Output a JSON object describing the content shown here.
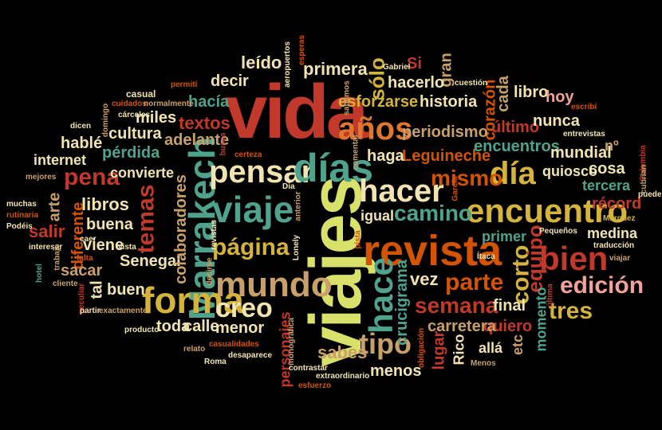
{
  "palette": {
    "red": "#c0392b",
    "rust": "#d35400",
    "yellow": "#d8e16a",
    "teal": "#4fa38c",
    "cream": "#f2e4b0",
    "pink": "#f2a29a",
    "tan": "#c9a06a",
    "orange": "#e0772e",
    "gold": "#d4b43a",
    "olive": "#a8b23a"
  },
  "words": [
    {
      "id": "vida",
      "text": "vida"
    },
    {
      "id": "viajes",
      "text": "viajes"
    },
    {
      "id": "revista",
      "text": "revista"
    },
    {
      "id": "viaje",
      "text": "viaje"
    },
    {
      "id": "marrakech",
      "text": "Marrakech"
    },
    {
      "id": "pensar",
      "text": "pensar"
    },
    {
      "id": "dias",
      "text": "días"
    },
    {
      "id": "encuentro",
      "text": "encuentro"
    },
    {
      "id": "hacer",
      "text": "hacer"
    },
    {
      "id": "mundo",
      "text": "mundo"
    },
    {
      "id": "forma",
      "text": "forma"
    },
    {
      "id": "bien",
      "text": "bien"
    },
    {
      "id": "hace",
      "text": "hace"
    },
    {
      "id": "anos",
      "text": "años"
    },
    {
      "id": "dia",
      "text": "día"
    },
    {
      "id": "pagina",
      "text": "página"
    },
    {
      "id": "tipo",
      "text": "tipo"
    },
    {
      "id": "mismo",
      "text": "mismo"
    },
    {
      "id": "camino",
      "text": "camino"
    },
    {
      "id": "parte",
      "text": "parte"
    },
    {
      "id": "semana",
      "text": "semana"
    },
    {
      "id": "edicion",
      "text": "edición"
    },
    {
      "id": "tres",
      "text": "tres"
    },
    {
      "id": "creo",
      "text": "creo"
    },
    {
      "id": "temas",
      "text": "temas"
    },
    {
      "id": "pena",
      "text": "pena"
    },
    {
      "id": "corto",
      "text": "corto"
    },
    {
      "id": "equipo",
      "text": "equipo"
    },
    {
      "id": "solo",
      "text": "sólo"
    },
    {
      "id": "textos",
      "text": "textos"
    },
    {
      "id": "hacia",
      "text": "hacía"
    },
    {
      "id": "decir",
      "text": "decir"
    },
    {
      "id": "leido",
      "text": "leído"
    },
    {
      "id": "primera",
      "text": "primera"
    },
    {
      "id": "si",
      "text": "Si"
    },
    {
      "id": "gran",
      "text": "gran"
    },
    {
      "id": "hacerlo",
      "text": "hacerlo"
    },
    {
      "id": "esforzarse",
      "text": "esforzarse"
    },
    {
      "id": "historia",
      "text": "historia"
    },
    {
      "id": "corazon",
      "text": "corazón"
    },
    {
      "id": "cada",
      "text": "cada"
    },
    {
      "id": "libro",
      "text": "libro"
    },
    {
      "id": "hoy",
      "text": "hoy"
    },
    {
      "id": "ultimo",
      "text": "último"
    },
    {
      "id": "nunca",
      "text": "nunca"
    },
    {
      "id": "periodismo",
      "text": "periodismo"
    },
    {
      "id": "leguineche",
      "text": "Leguineche"
    },
    {
      "id": "haga",
      "text": "haga"
    },
    {
      "id": "encuentros",
      "text": "encuentros"
    },
    {
      "id": "mundial",
      "text": "mundial"
    },
    {
      "id": "no_ord",
      "text": "nº"
    },
    {
      "id": "quiosco",
      "text": "quiosco"
    },
    {
      "id": "cosa",
      "text": "cosa"
    },
    {
      "id": "tercera",
      "text": "tercera"
    },
    {
      "id": "record",
      "text": "récord"
    },
    {
      "id": "medina",
      "text": "medina"
    },
    {
      "id": "primer",
      "text": "primer"
    },
    {
      "id": "igual",
      "text": "igual"
    },
    {
      "id": "vez",
      "text": "vez"
    },
    {
      "id": "crucigrama",
      "text": "crucigrama"
    },
    {
      "id": "final",
      "text": "final"
    },
    {
      "id": "quiero",
      "text": "quiero"
    },
    {
      "id": "carretera",
      "text": "carretera"
    },
    {
      "id": "momento",
      "text": "momento"
    },
    {
      "id": "etc",
      "text": "etc"
    },
    {
      "id": "alla",
      "text": "allá"
    },
    {
      "id": "lugar",
      "text": "lugar"
    },
    {
      "id": "rico",
      "text": "Rico"
    },
    {
      "id": "sabes",
      "text": "sabes"
    },
    {
      "id": "menos",
      "text": "menos"
    },
    {
      "id": "personajes",
      "text": "personajes"
    },
    {
      "id": "menor",
      "text": "menor"
    },
    {
      "id": "calle",
      "text": "calle"
    },
    {
      "id": "toda",
      "text": "toda"
    },
    {
      "id": "buen",
      "text": "buen"
    },
    {
      "id": "viene",
      "text": "viene"
    },
    {
      "id": "senegal",
      "text": "Senegal"
    },
    {
      "id": "colaboradores",
      "text": "colaboradores"
    },
    {
      "id": "buena",
      "text": "buena"
    },
    {
      "id": "libros",
      "text": "libros"
    },
    {
      "id": "arte",
      "text": "arte"
    },
    {
      "id": "diferente",
      "text": "diferente"
    },
    {
      "id": "salir",
      "text": "salir"
    },
    {
      "id": "sacar",
      "text": "sacar"
    },
    {
      "id": "tal",
      "text": "tal"
    },
    {
      "id": "internet",
      "text": "internet"
    },
    {
      "id": "hable",
      "text": "hablé"
    },
    {
      "id": "perdida",
      "text": "pérdida"
    },
    {
      "id": "cultura",
      "text": "cultura"
    },
    {
      "id": "miles",
      "text": "miles"
    },
    {
      "id": "adelante",
      "text": "adelante"
    },
    {
      "id": "convierte",
      "text": "convierte"
    },
    {
      "id": "casual",
      "text": "casual"
    },
    {
      "id": "cuidados",
      "text": "cuidados"
    },
    {
      "id": "normalmente",
      "text": "normalmente"
    },
    {
      "id": "permiti",
      "text": "permití"
    },
    {
      "id": "carceles",
      "text": "cárceles"
    },
    {
      "id": "domingo",
      "text": "domingo"
    },
    {
      "id": "dicen",
      "text": "dicen"
    },
    {
      "id": "mejores",
      "text": "mejores"
    },
    {
      "id": "muchas",
      "text": "muchas"
    },
    {
      "id": "rutinaria",
      "text": "rutinaria"
    },
    {
      "id": "podeis",
      "text": "Podéis"
    },
    {
      "id": "interesar",
      "text": "interesar"
    },
    {
      "id": "trabajo",
      "text": "trabajo"
    },
    {
      "id": "caer",
      "text": "caer"
    },
    {
      "id": "falta",
      "text": "falta"
    },
    {
      "id": "vista",
      "text": "vista"
    },
    {
      "id": "hotel",
      "text": "hotel"
    },
    {
      "id": "cliente",
      "text": "cliente"
    },
    {
      "id": "peculiar",
      "text": "peculiar"
    },
    {
      "id": "partir",
      "text": "partir"
    },
    {
      "id": "exactamente",
      "text": "exactamente"
    },
    {
      "id": "producto",
      "text": "producto"
    },
    {
      "id": "relato",
      "text": "relato"
    },
    {
      "id": "roma",
      "text": "Roma"
    },
    {
      "id": "casualidades",
      "text": "casualidades"
    },
    {
      "id": "desaparece",
      "text": "desaparece"
    },
    {
      "id": "monografica",
      "text": "monográfica"
    },
    {
      "id": "contrastar",
      "text": "contrastar"
    },
    {
      "id": "extraordinario",
      "text": "extraordinario"
    },
    {
      "id": "esfuerzo",
      "text": "esfuerzo"
    },
    {
      "id": "decirse",
      "text": "decirse"
    },
    {
      "id": "revistas",
      "text": "revistas"
    },
    {
      "id": "lonely",
      "text": "Lonely"
    },
    {
      "id": "dia_small",
      "text": "Dia"
    },
    {
      "id": "anterior",
      "text": "anterior"
    },
    {
      "id": "certeza",
      "text": "certeza"
    },
    {
      "id": "busca",
      "text": "busca"
    },
    {
      "id": "comentar",
      "text": "comentar"
    },
    {
      "id": "garcia",
      "text": "García"
    },
    {
      "id": "aeropuertos",
      "text": "aeropuertos"
    },
    {
      "id": "esperas",
      "text": "esperas"
    },
    {
      "id": "gabriel",
      "text": "Gabriel"
    },
    {
      "id": "sabamos",
      "text": "sabamos"
    },
    {
      "id": "cuestion",
      "text": "cuestión"
    },
    {
      "id": "escribi",
      "text": "escribí"
    },
    {
      "id": "entrevistas",
      "text": "entrevistas"
    },
    {
      "id": "colombia",
      "text": "Colombia"
    },
    {
      "id": "cubrian",
      "text": "cubrían"
    },
    {
      "id": "puede",
      "text": "puede"
    },
    {
      "id": "marquez",
      "text": "Márquez"
    },
    {
      "id": "pequenos",
      "text": "Pequeños"
    },
    {
      "id": "traduccion",
      "text": "traducción"
    },
    {
      "id": "viajar",
      "text": "viajar"
    },
    {
      "id": "ultima",
      "text": "última"
    },
    {
      "id": "itaca",
      "text": "Ítaca"
    },
    {
      "id": "obligacion",
      "text": "obligación"
    },
    {
      "id": "menos_small",
      "text": "Menos"
    },
    {
      "id": "pista",
      "text": "pista"
    }
  ]
}
